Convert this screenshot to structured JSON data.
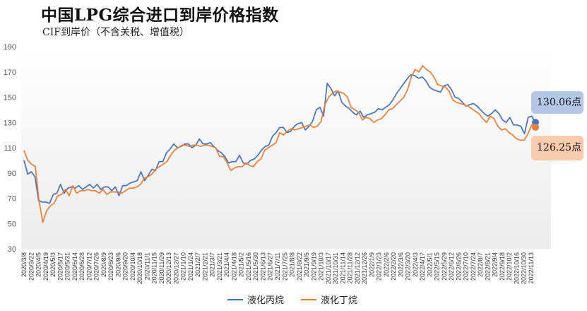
{
  "title": "中国LPG综合进口到岸价格指数",
  "subtitle": "CIF到岸价（不含关税、增值税）",
  "annotations": {
    "propane_last": "130.06点",
    "butane_last": "126.25点"
  },
  "colors": {
    "propane": "#4472c4",
    "butane": "#ed7d31"
  },
  "chart_data": {
    "type": "line",
    "title": "中国LPG综合进口到岸价格指数",
    "ylim": [
      30,
      190
    ],
    "yticks": [
      30,
      50,
      70,
      90,
      110,
      130,
      150,
      170,
      190
    ],
    "xtick_labels": [
      "2020/3/8",
      "2020/3/22",
      "2020/4/5",
      "2020/4/19",
      "2020/5/3",
      "2020/5/17",
      "2020/5/31",
      "2020/6/14",
      "2020/6/28",
      "2020/7/12",
      "2020/7/26",
      "2020/8/9",
      "2020/8/23",
      "2020/9/6",
      "2020/9/20",
      "2020/10/4",
      "2020/10/18",
      "2020/11/1",
      "2020/11/15",
      "2020/11/29",
      "2020/12/13",
      "2020/12/27",
      "2021/1/10",
      "2021/1/24",
      "2021/2/7",
      "2021/2/21",
      "2021/3/7",
      "2021/3/21",
      "2021/4/4",
      "2021/4/18",
      "2021/5/2",
      "2021/5/16",
      "2021/5/30",
      "2021/6/13",
      "2021/6/27",
      "2021/7/11",
      "2021/7/25",
      "2021/8/8",
      "2021/8/22",
      "2021/9/5",
      "2021/9/19",
      "2021/10/3",
      "2021/10/17",
      "2021/10/31",
      "2021/11/14",
      "2021/11/28",
      "2021/12/12",
      "2021/12/26",
      "2022/1/9",
      "2022/1/23",
      "2022/2/6",
      "2022/2/20",
      "2022/3/6",
      "2022/3/20",
      "2022/4/3",
      "2022/4/17",
      "2022/5/1",
      "2022/5/15",
      "2022/5/29",
      "2022/6/12",
      "2022/6/26",
      "2022/7/10",
      "2022/7/24",
      "2022/8/7",
      "2022/8/21",
      "2022/9/4",
      "2022/9/18",
      "2022/10/2",
      "2022/10/16",
      "2022/10/30",
      "2022/11/13"
    ],
    "grid": false,
    "legend_position": "bottom",
    "series": [
      {
        "name": "液化丙烷",
        "color": "#4472c4",
        "values": [
          100,
          89,
          91,
          87,
          68,
          67,
          67,
          66,
          73,
          74,
          81,
          74,
          78,
          79,
          78,
          80,
          77,
          79,
          81,
          78,
          81,
          77,
          79,
          79,
          76,
          79,
          72,
          80,
          80,
          82,
          83,
          84,
          91,
          84,
          88,
          93,
          92,
          99,
          99,
          106,
          109,
          113,
          110,
          111,
          113,
          113,
          110,
          112,
          117,
          113,
          113,
          114,
          111,
          108,
          106,
          103,
          98,
          99,
          99,
          104,
          98,
          97,
          100,
          101,
          104,
          108,
          111,
          112,
          119,
          122,
          126,
          126,
          122,
          123,
          127,
          129,
          130,
          124,
          127,
          131,
          140,
          142,
          135,
          161,
          157,
          151,
          155,
          146,
          143,
          141,
          138,
          136,
          139,
          134,
          136,
          137,
          138,
          141,
          140,
          142,
          144,
          148,
          153,
          157,
          161,
          165,
          168,
          167,
          165,
          166,
          163,
          158,
          156,
          155,
          154,
          159,
          160,
          156,
          150,
          149,
          146,
          143,
          144,
          145,
          143,
          140,
          137,
          135,
          137,
          140,
          137,
          132,
          130,
          134,
          128,
          128,
          127,
          121,
          134,
          135,
          130.06
        ]
      },
      {
        "name": "液化丁烷",
        "color": "#ed7d31",
        "values": [
          108,
          100,
          97,
          95,
          68,
          51,
          60,
          64,
          66,
          72,
          73,
          77,
          72,
          80,
          74,
          76,
          76,
          77,
          76,
          76,
          74,
          77,
          73,
          75,
          75,
          75,
          74,
          76,
          78,
          78,
          79,
          81,
          86,
          87,
          89,
          93,
          95,
          97,
          99,
          104,
          108,
          110,
          112,
          112,
          111,
          112,
          112,
          111,
          112,
          112,
          111,
          110,
          103,
          103,
          98,
          92,
          94,
          95,
          95,
          98,
          96,
          95,
          99,
          101,
          108,
          110,
          112,
          114,
          122,
          120,
          123,
          125,
          124,
          125,
          126,
          127,
          128,
          126,
          127,
          131,
          144,
          150,
          153,
          155,
          154,
          153,
          150,
          142,
          140,
          138,
          132,
          134,
          133,
          130,
          132,
          133,
          136,
          140,
          141,
          144,
          147,
          150,
          156,
          166,
          172,
          170,
          175,
          172,
          170,
          166,
          160,
          159,
          158,
          155,
          148,
          146,
          145,
          144,
          143,
          141,
          139,
          137,
          133,
          130,
          135,
          133,
          127,
          124,
          125,
          122,
          120,
          117,
          116,
          116,
          121,
          128,
          126.25
        ]
      }
    ]
  },
  "legend": {
    "propane": "液化丙烷",
    "butane": "液化丁烷"
  }
}
